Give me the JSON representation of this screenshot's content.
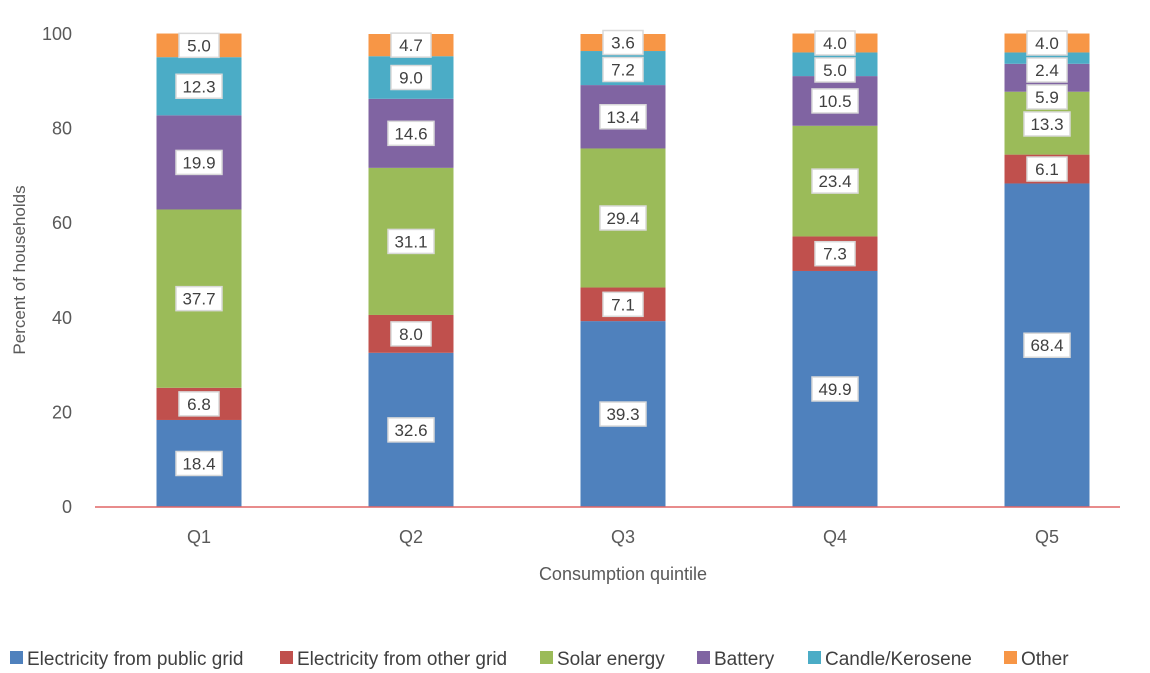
{
  "chart_data": {
    "type": "bar",
    "stacked": true,
    "title": "",
    "xlabel": "Consumption quintile",
    "ylabel": "Percent of households",
    "categories": [
      "Q1",
      "Q2",
      "Q3",
      "Q4",
      "Q5"
    ],
    "ylim": [
      0,
      100
    ],
    "yticks": [
      "0",
      "20",
      "40",
      "60",
      "80",
      "100"
    ],
    "grid": false,
    "legend_position": "bottom",
    "series": [
      {
        "name": "Electricity from public grid",
        "color": "#4F81BD",
        "values": [
          18.4,
          32.6,
          39.3,
          49.9,
          68.4
        ],
        "labels": [
          "18.4",
          "32.6",
          "39.3",
          "49.9",
          "68.4"
        ]
      },
      {
        "name": "Electricity from other grid",
        "color": "#C0504D",
        "values": [
          6.8,
          8.0,
          7.1,
          7.3,
          6.1
        ],
        "labels": [
          "6.8",
          "8.0",
          "7.1",
          "7.3",
          "6.1"
        ]
      },
      {
        "name": "Solar energy",
        "color": "#9BBB59",
        "values": [
          37.7,
          31.1,
          29.4,
          23.4,
          13.3
        ],
        "labels": [
          "37.7",
          "31.1",
          "29.4",
          "23.4",
          "13.3"
        ]
      },
      {
        "name": "Battery",
        "color": "#8064A2",
        "values": [
          19.9,
          14.6,
          13.4,
          10.5,
          5.9
        ],
        "labels": [
          "19.9",
          "14.6",
          "13.4",
          "10.5",
          "5.9"
        ]
      },
      {
        "name": "Candle/Kerosene",
        "color": "#4BACC6",
        "values": [
          12.3,
          9.0,
          7.2,
          5.0,
          2.4
        ],
        "labels": [
          "12.3",
          "9.0",
          "7.2",
          "5.0",
          "2.4"
        ]
      },
      {
        "name": "Other",
        "color": "#F79646",
        "values": [
          5.0,
          4.7,
          3.6,
          4.0,
          4.0
        ],
        "labels": [
          "5.0",
          "4.7",
          "3.6",
          "4.0",
          "4.0"
        ]
      }
    ],
    "axis_color": "#E06666"
  }
}
